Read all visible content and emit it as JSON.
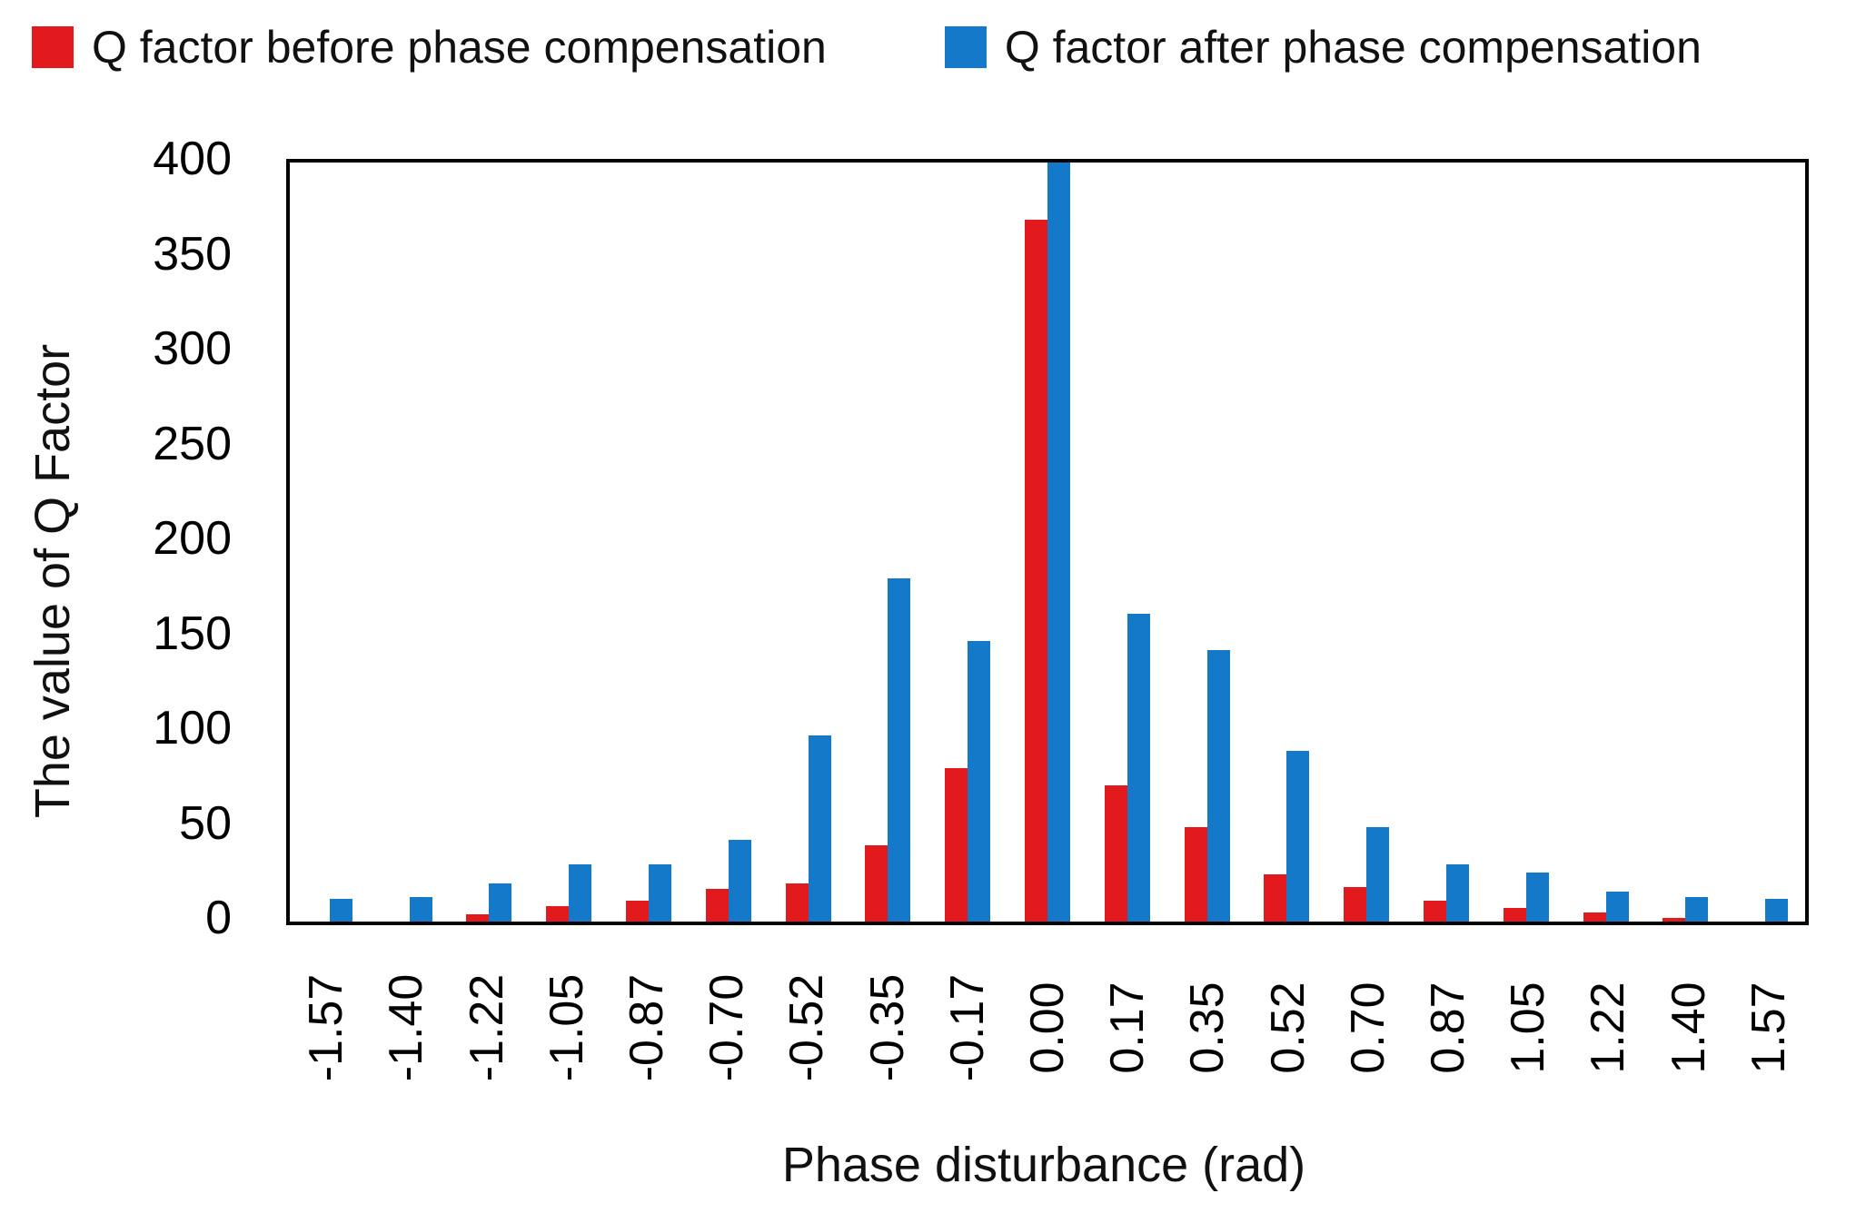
{
  "legend": [
    {
      "label": "Q factor before phase compensation",
      "color": "#e2191d"
    },
    {
      "label": "Q factor after phase compensation",
      "color": "#1379c8"
    }
  ],
  "chart_data": {
    "type": "bar",
    "title": "",
    "xlabel": "Phase disturbance (rad)",
    "ylabel": "The value of Q Factor",
    "ylim": [
      0,
      400
    ],
    "yticks": [
      0,
      50,
      100,
      150,
      200,
      250,
      300,
      350,
      400
    ],
    "grid": false,
    "legend_position": "top",
    "categories": [
      "-1.57",
      "-1.40",
      "-1.22",
      "-1.05",
      "-0.87",
      "-0.70",
      "-0.52",
      "-0.35",
      "-0.17",
      "0.00",
      "0.17",
      "0.35",
      "0.52",
      "0.70",
      "0.87",
      "1.05",
      "1.22",
      "1.40",
      "1.57"
    ],
    "series": [
      {
        "name": "Q factor before phase compensation",
        "color": "#e2191d",
        "values": [
          0,
          0,
          4,
          8,
          11,
          17,
          20,
          40,
          81,
          370,
          72,
          50,
          25,
          18,
          11,
          7,
          5,
          2,
          0
        ]
      },
      {
        "name": "Q factor after phase compensation",
        "color": "#1379c8",
        "values": [
          12,
          13,
          20,
          30,
          30,
          43,
          98,
          181,
          148,
          400,
          162,
          143,
          90,
          50,
          30,
          26,
          16,
          13,
          12
        ]
      }
    ]
  }
}
